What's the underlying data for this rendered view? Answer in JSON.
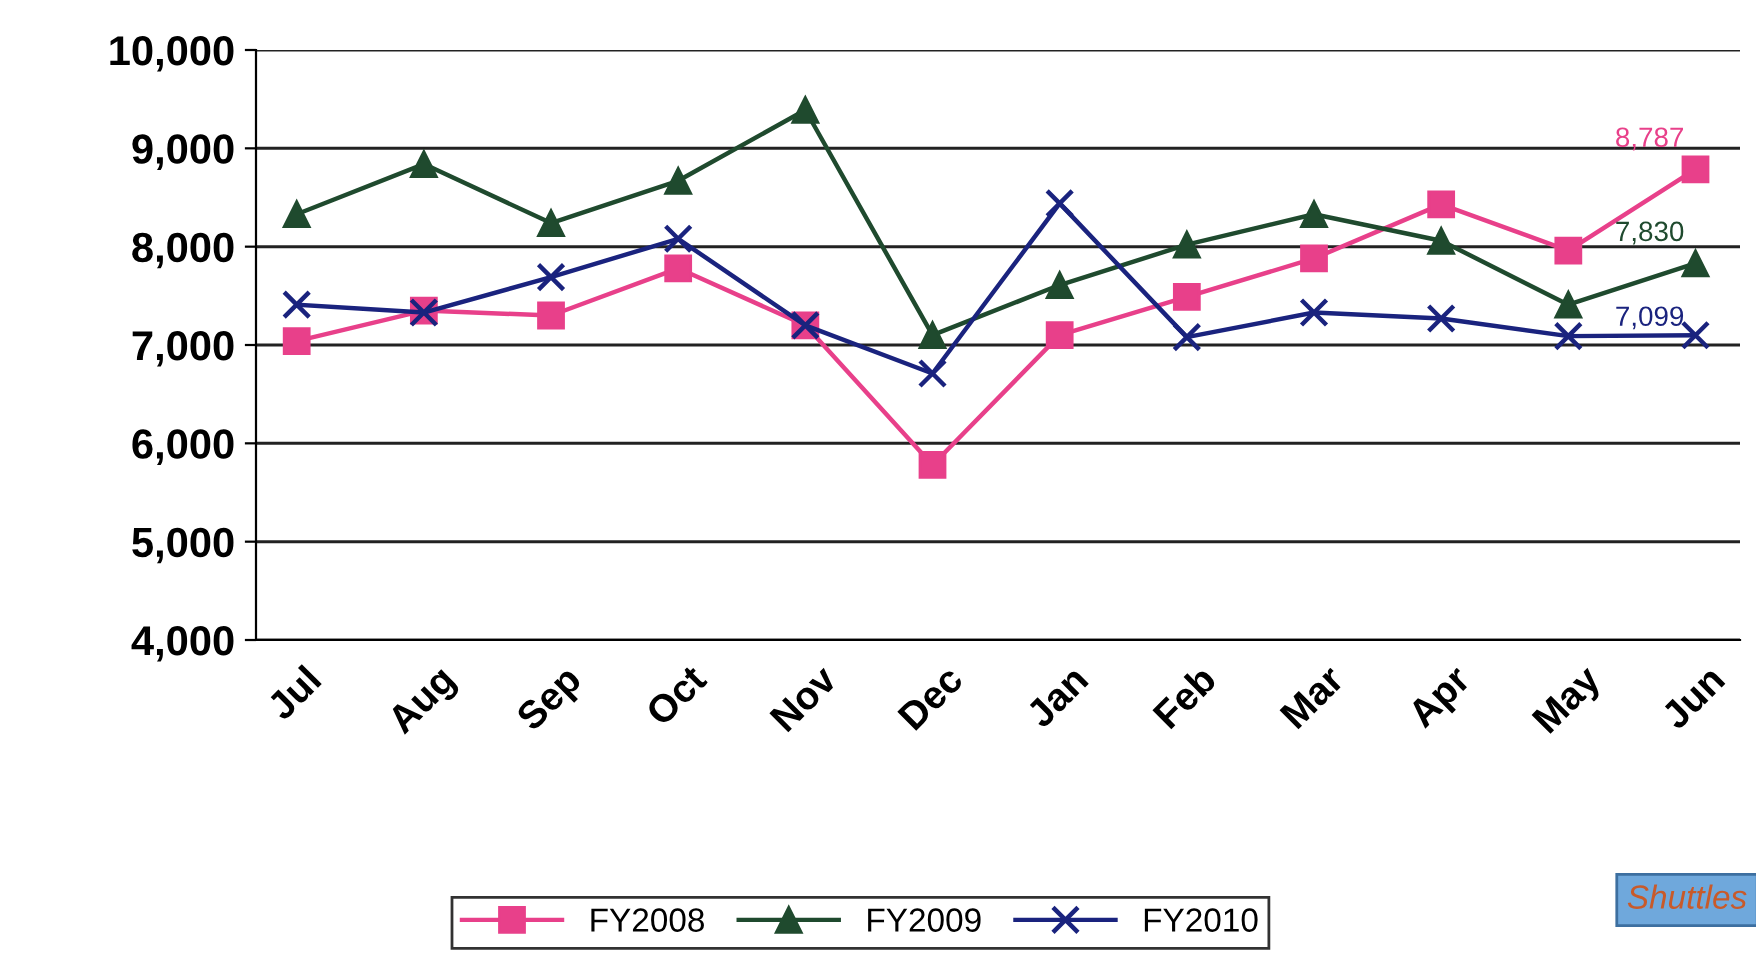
{
  "chart_data": {
    "type": "line",
    "categories": [
      "Jul",
      "Aug",
      "Sep",
      "Oct",
      "Nov",
      "Dec",
      "Jan",
      "Feb",
      "Mar",
      "Apr",
      "May",
      "Jun"
    ],
    "series": [
      {
        "name": "FY2008",
        "color": "#e8408a",
        "marker": "square",
        "values": [
          7040,
          7350,
          7300,
          7780,
          7200,
          5780,
          7100,
          7490,
          7880,
          8430,
          7960,
          8787
        ],
        "value_labels": [
          null,
          null,
          null,
          null,
          null,
          null,
          null,
          null,
          null,
          null,
          null,
          "8,787"
        ]
      },
      {
        "name": "FY2009",
        "color": "#1f4a2e",
        "marker": "triangle",
        "values": [
          8330,
          8840,
          8240,
          8670,
          9390,
          7100,
          7610,
          8020,
          8330,
          8060,
          7410,
          7830
        ],
        "value_labels": [
          null,
          null,
          null,
          null,
          null,
          null,
          null,
          null,
          null,
          null,
          null,
          "7,830"
        ]
      },
      {
        "name": "FY2010",
        "color": "#1a237e",
        "marker": "cross",
        "values": [
          7410,
          7330,
          7690,
          8080,
          7200,
          6710,
          8440,
          7080,
          7330,
          7270,
          7090,
          7099
        ],
        "value_labels": [
          null,
          null,
          null,
          null,
          null,
          null,
          null,
          null,
          null,
          null,
          null,
          "7,099"
        ]
      }
    ],
    "ylim": [
      4000,
      10000
    ],
    "yticks": [
      {
        "value": 4000,
        "label": "4,000"
      },
      {
        "value": 5000,
        "label": "5,000"
      },
      {
        "value": 6000,
        "label": "6,000"
      },
      {
        "value": 7000,
        "label": "7,000"
      },
      {
        "value": 8000,
        "label": "8,000"
      },
      {
        "value": 9000,
        "label": "9,000"
      },
      {
        "value": 10000,
        "label": "10,000"
      }
    ],
    "grid": "y",
    "legend": "bottom",
    "line_style": "solid",
    "annotations": [
      "Shuttles"
    ]
  }
}
